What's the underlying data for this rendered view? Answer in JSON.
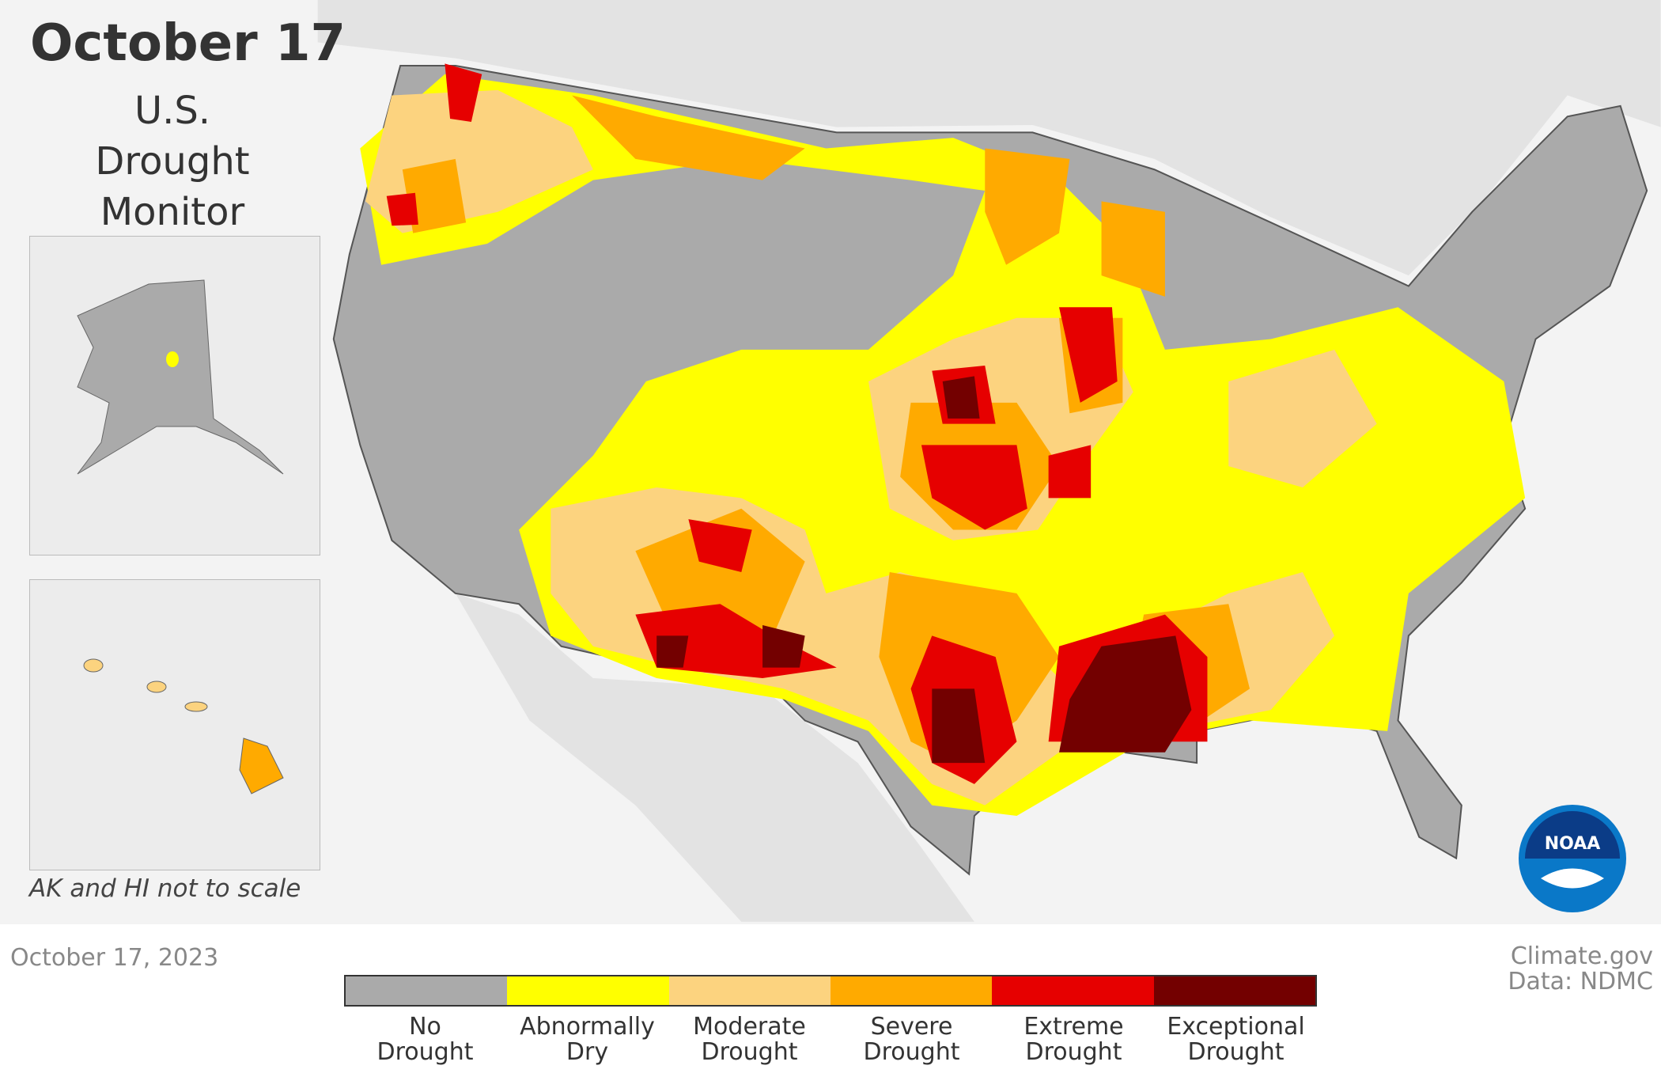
{
  "title": "October 17",
  "subtitle": "U.S. Drought Monitor",
  "inset_note": "AK and HI not to scale",
  "date": "October 17, 2023",
  "credit": "Climate.gov",
  "source": "Data: NDMC",
  "logo": "NOAA",
  "legend": [
    {
      "label": "No Drought",
      "color": "#aaaaaa"
    },
    {
      "label": "Abnormally Dry",
      "color": "#ffff00"
    },
    {
      "label": "Moderate Drought",
      "color": "#fcd37f"
    },
    {
      "label": "Severe Drought",
      "color": "#ffaa00"
    },
    {
      "label": "Extreme Drought",
      "color": "#e60000"
    },
    {
      "label": "Exceptional Drought",
      "color": "#730000"
    }
  ]
}
